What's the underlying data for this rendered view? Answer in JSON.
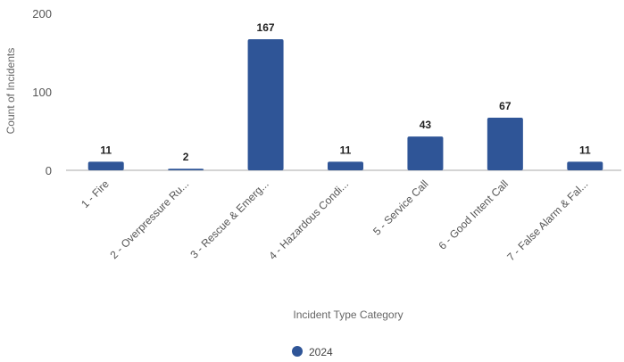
{
  "chart_data": {
    "type": "bar",
    "categories": [
      "1 - Fire",
      "2 - Overpressure Ru...",
      "3 - Rescue & Emerg...",
      "4 - Hazardous Condi...",
      "5 - Service Call",
      "6 - Good Intent Call",
      "7 - False Alarm & Fal..."
    ],
    "series": [
      {
        "name": "2024",
        "values": [
          11,
          2,
          167,
          11,
          43,
          67,
          11
        ],
        "color": "#2f5597"
      }
    ],
    "data_labels": [
      "11",
      "2",
      "167",
      "11",
      "43",
      "67",
      "11"
    ],
    "xlabel": "Incident Type Category",
    "ylabel": "Count of Incidents",
    "ylim": [
      0,
      200
    ],
    "yticks": [
      0,
      100,
      200
    ],
    "grid": false,
    "legend": "bottom-center"
  }
}
